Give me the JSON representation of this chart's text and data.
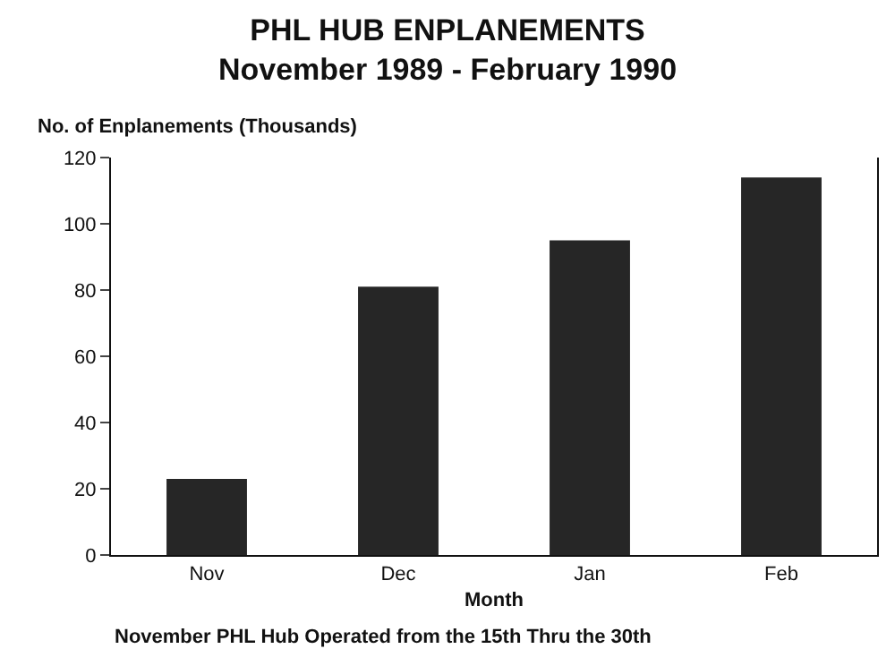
{
  "chart_data": {
    "type": "bar",
    "title": "PHL HUB ENPLANEMENTS",
    "subtitle": "November 1989 - February 1990",
    "ylabel": "No. of Enplanements (Thousands)",
    "xlabel": "Month",
    "categories": [
      "Nov",
      "Dec",
      "Jan",
      "Feb"
    ],
    "values": [
      23,
      81,
      95,
      114
    ],
    "color": "#262626",
    "ylim": [
      0,
      120
    ],
    "yticks": [
      0,
      20,
      40,
      60,
      80,
      100,
      120
    ],
    "legend": false,
    "annotations": [
      "November PHL Hub Operated from the 15th Thru the 30th"
    ]
  }
}
